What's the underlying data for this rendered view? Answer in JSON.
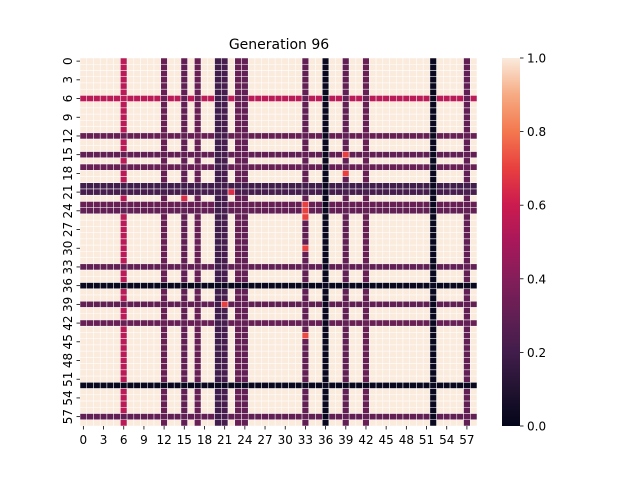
{
  "chart_data": {
    "type": "heatmap",
    "title": "Generation 96",
    "xlabel": "",
    "ylabel": "",
    "size": 59,
    "x_tick_labels": [
      "0",
      "3",
      "6",
      "9",
      "12",
      "15",
      "18",
      "21",
      "24",
      "27",
      "30",
      "33",
      "36",
      "39",
      "42",
      "45",
      "48",
      "51",
      "54",
      "57"
    ],
    "y_tick_labels": [
      "0",
      "3",
      "6",
      "9",
      "12",
      "15",
      "18",
      "21",
      "24",
      "27",
      "30",
      "33",
      "36",
      "39",
      "42",
      "45",
      "48",
      "51",
      "54",
      "57"
    ],
    "colorbar": {
      "min": 0.0,
      "max": 1.0,
      "tick_labels": [
        "0.0",
        "0.2",
        "0.4",
        "0.6",
        "0.8",
        "1.0"
      ],
      "colormap": "rocket"
    },
    "base_value": 1.0,
    "highlighted_lines": [
      {
        "index": 6,
        "value": 0.55
      },
      {
        "index": 12,
        "value": 0.32
      },
      {
        "index": 15,
        "value": 0.3
      },
      {
        "index": 17,
        "value": 0.32
      },
      {
        "index": 20,
        "value": 0.2
      },
      {
        "index": 21,
        "value": 0.22
      },
      {
        "index": 23,
        "value": 0.32
      },
      {
        "index": 24,
        "value": 0.3
      },
      {
        "index": 33,
        "value": 0.3
      },
      {
        "index": 36,
        "value": 0.02
      },
      {
        "index": 39,
        "value": 0.3
      },
      {
        "index": 42,
        "value": 0.32
      },
      {
        "index": 52,
        "value": 0.02
      },
      {
        "index": 57,
        "value": 0.3
      }
    ],
    "outlier_cells": [
      {
        "row": 15,
        "col": 39,
        "value": 0.7
      },
      {
        "row": 18,
        "col": 39,
        "value": 0.7
      },
      {
        "row": 21,
        "col": 22,
        "value": 0.65
      },
      {
        "row": 22,
        "col": 15,
        "value": 0.65
      },
      {
        "row": 23,
        "col": 33,
        "value": 0.7
      },
      {
        "row": 24,
        "col": 33,
        "value": 0.7
      },
      {
        "row": 25,
        "col": 33,
        "value": 0.7
      },
      {
        "row": 30,
        "col": 33,
        "value": 0.7
      },
      {
        "row": 39,
        "col": 21,
        "value": 0.7
      },
      {
        "row": 44,
        "col": 33,
        "value": 0.72
      }
    ]
  }
}
